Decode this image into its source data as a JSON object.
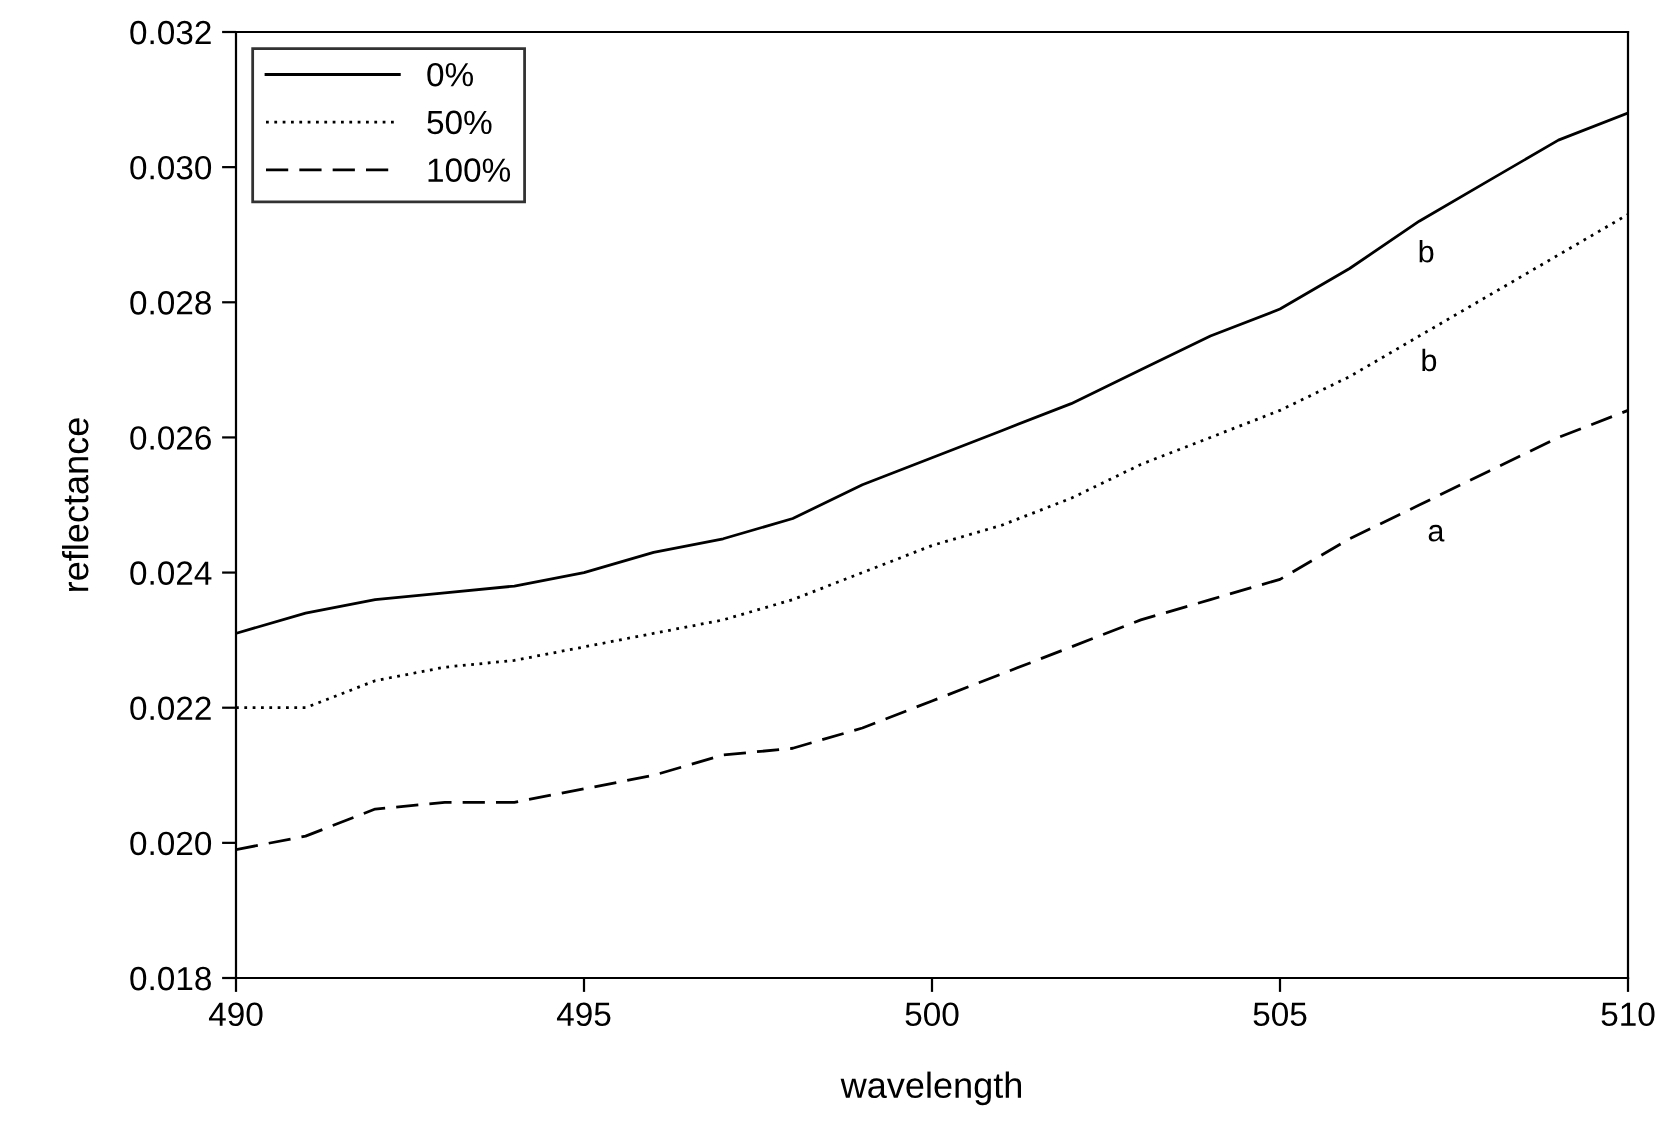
{
  "chart_data": {
    "type": "line",
    "xlabel": "wavelength",
    "ylabel": "reflectance",
    "x": [
      490,
      491,
      492,
      493,
      494,
      495,
      496,
      497,
      498,
      499,
      500,
      501,
      502,
      503,
      504,
      505,
      506,
      507,
      508,
      509,
      510
    ],
    "series": [
      {
        "name": "0%",
        "color": "#000000",
        "line_style": "solid",
        "values": [
          0.0231,
          0.0234,
          0.0236,
          0.0237,
          0.0238,
          0.024,
          0.0243,
          0.0245,
          0.0248,
          0.0253,
          0.0257,
          0.0261,
          0.0265,
          0.027,
          0.0275,
          0.0279,
          0.0285,
          0.0292,
          0.0298,
          0.0304,
          0.0308
        ]
      },
      {
        "name": "50%",
        "color": "#000000",
        "line_style": "dotted",
        "values": [
          0.022,
          0.022,
          0.0224,
          0.0226,
          0.0227,
          0.0229,
          0.0231,
          0.0233,
          0.0236,
          0.024,
          0.0244,
          0.0247,
          0.0251,
          0.0256,
          0.026,
          0.0264,
          0.0269,
          0.0275,
          0.0281,
          0.0287,
          0.0293
        ]
      },
      {
        "name": "100%",
        "color": "#000000",
        "line_style": "dashed",
        "values": [
          0.0199,
          0.0201,
          0.0205,
          0.0206,
          0.0206,
          0.0208,
          0.021,
          0.0213,
          0.0214,
          0.0217,
          0.0221,
          0.0225,
          0.0229,
          0.0233,
          0.0236,
          0.0239,
          0.0245,
          0.025,
          0.0255,
          0.026,
          0.0264
        ]
      }
    ],
    "annotations": [
      "b",
      "b",
      "a"
    ],
    "xlim": [
      490,
      510
    ],
    "xticks": [
      490,
      495,
      500,
      505,
      510
    ],
    "ylim": [
      0.018,
      0.032
    ],
    "yticks": [
      {
        "value": 0.018,
        "label": "0.018"
      },
      {
        "value": 0.02,
        "label": "0.020"
      },
      {
        "value": 0.022,
        "label": "0.022"
      },
      {
        "value": 0.024,
        "label": "0.024"
      },
      {
        "value": 0.026,
        "label": "0.026"
      },
      {
        "value": 0.028,
        "label": "0.028"
      },
      {
        "value": 0.03,
        "label": "0.030"
      },
      {
        "value": 0.032,
        "label": "0.032"
      }
    ],
    "grid": false,
    "legend": "top left",
    "marker": "none"
  }
}
